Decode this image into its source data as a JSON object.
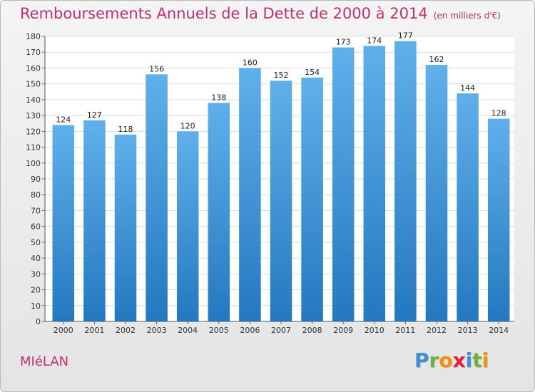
{
  "title": "Remboursements Annuels de la Dette de 2000 à 2014",
  "unit": "(en milliers d'€)",
  "commune": "MIéLAN",
  "logo": {
    "letters": [
      "P",
      "r",
      "o",
      "x",
      "i",
      "t",
      "i"
    ],
    "colors": [
      "#3c8fd0",
      "#6cb33e",
      "#f39200",
      "#e2213b",
      "#3c8fd0",
      "#6cb33e",
      "#f39200"
    ]
  },
  "colors": {
    "bar_top": "#5fb0ea",
    "bar_bottom": "#2478bf",
    "title": "#c0306f"
  },
  "chart_data": {
    "type": "bar",
    "categories": [
      "2000",
      "2001",
      "2002",
      "2003",
      "2004",
      "2005",
      "2006",
      "2007",
      "2008",
      "2009",
      "2010",
      "2011",
      "2012",
      "2013",
      "2014"
    ],
    "values": [
      124,
      127,
      118,
      156,
      120,
      138,
      160,
      152,
      154,
      173,
      174,
      177,
      162,
      144,
      128
    ],
    "ylim": [
      0,
      180
    ],
    "yticks": [
      0,
      10,
      20,
      30,
      40,
      50,
      60,
      70,
      80,
      90,
      100,
      110,
      120,
      130,
      140,
      150,
      160,
      170,
      180
    ],
    "grid": true
  }
}
